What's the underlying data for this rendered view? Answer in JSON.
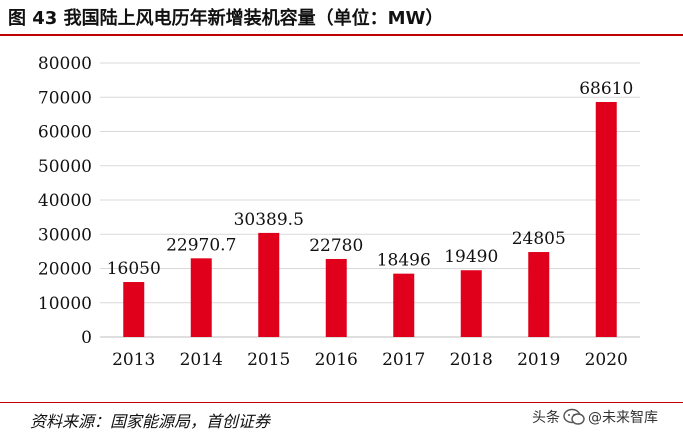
{
  "header": {
    "figure_title": "图 43 我国陆上风电历年新增装机容量（单位：MW）"
  },
  "footer": {
    "source": "资料来源：国家能源局，首创证券",
    "watermark_left": "头条",
    "watermark_right": "@未来智库",
    "watermark_icon": "wechat-bubble-icon"
  },
  "colors": {
    "bar": "#e0001b",
    "accent_rule": "#c00000",
    "grid": "#d9d9d9"
  },
  "chart_data": {
    "type": "bar",
    "categories": [
      "2013",
      "2014",
      "2015",
      "2016",
      "2017",
      "2018",
      "2019",
      "2020"
    ],
    "values": [
      16050,
      22970.7,
      30389.5,
      22780,
      18496,
      19490,
      24805,
      68610
    ],
    "value_labels": [
      "16050",
      "22970.7",
      "30389.5",
      "22780",
      "18496",
      "19490",
      "24805",
      "68610"
    ],
    "yticks": [
      0,
      10000,
      20000,
      30000,
      40000,
      50000,
      60000,
      70000,
      80000
    ],
    "ylim": [
      0,
      80000
    ],
    "grid": true,
    "legend": "none"
  }
}
